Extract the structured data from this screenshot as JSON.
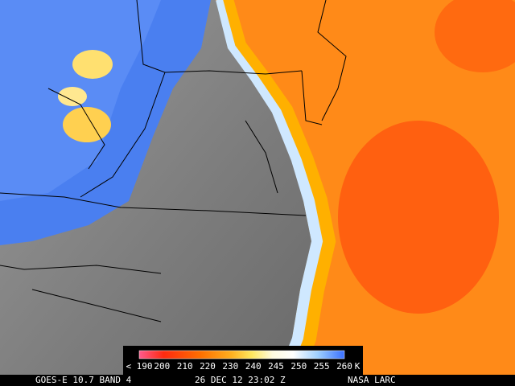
{
  "footer": {
    "satellite": "GOES-E 10.7 BAND 4",
    "timestamp": "26 DEC 12 23:02 Z",
    "source": "NASA LARC"
  },
  "colorbar": {
    "labels": [
      "< 190",
      "200",
      "210",
      "220",
      "230",
      "240",
      "245",
      "250",
      "255",
      "260"
    ],
    "unit": "K"
  }
}
